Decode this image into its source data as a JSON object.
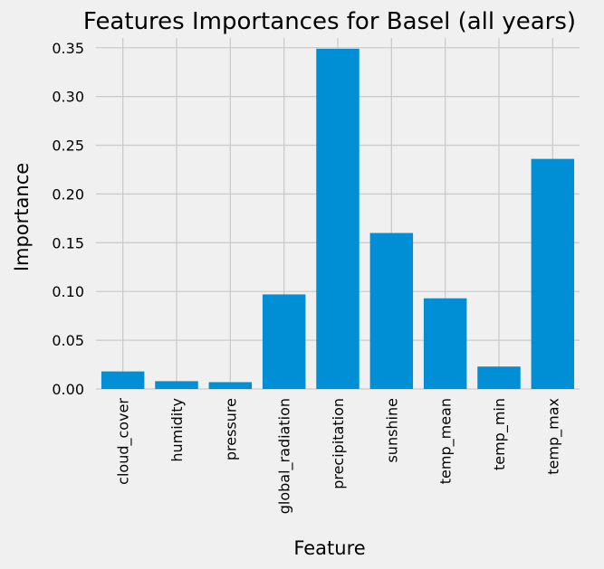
{
  "chart_data": {
    "type": "bar",
    "title": "Features Importances for Basel (all years)",
    "xlabel": "Feature",
    "ylabel": "Importance",
    "categories": [
      "cloud_cover",
      "humidity",
      "pressure",
      "global_radiation",
      "precipitation",
      "sunshine",
      "temp_mean",
      "temp_min",
      "temp_max"
    ],
    "values": [
      0.018,
      0.008,
      0.007,
      0.097,
      0.349,
      0.16,
      0.093,
      0.023,
      0.236
    ],
    "ylim": [
      0,
      0.36
    ],
    "yticks": [
      "0.00",
      "0.05",
      "0.10",
      "0.15",
      "0.20",
      "0.25",
      "0.30",
      "0.35"
    ],
    "bar_color": "#008fd5",
    "grid": true,
    "background": "#f0f0f0",
    "grid_color": "#cbcbcb"
  }
}
